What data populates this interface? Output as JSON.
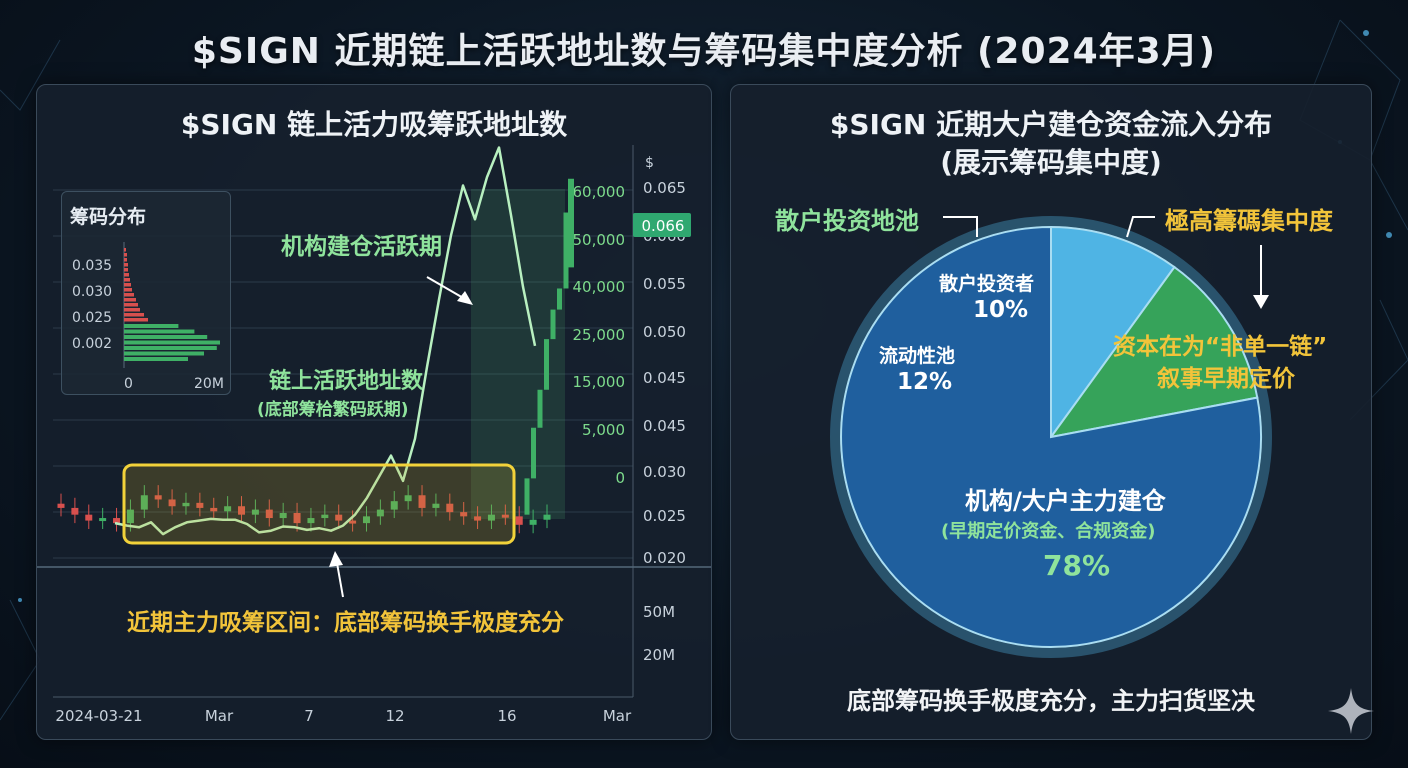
{
  "title": "$SIGN 近期链上活跃地址数与筹码集中度分析 (2024年3月)",
  "left_panel": {
    "title": "$SIGN 链上活力吸筹跃地址数",
    "inset_title": "筹码分布",
    "inset_y_ticks": [
      "0.035",
      "0.030",
      "0.025",
      "0.002"
    ],
    "inset_x_ticks": [
      "0",
      "20M"
    ],
    "price_axis_unit": "$",
    "price_ticks": [
      "0.065",
      "0.060",
      "0.055",
      "0.050",
      "0.045",
      "0.045",
      "0.030",
      "0.025",
      "0.020"
    ],
    "current_price": "0.066",
    "address_ticks": [
      "60,000",
      "50,000",
      "40,000",
      "25,000",
      "15,000",
      "5,000",
      "0"
    ],
    "volume_ticks": [
      "50M",
      "20M"
    ],
    "x_ticks": [
      "2024-03-21",
      "Mar",
      "7",
      "12",
      "16",
      "Mar"
    ],
    "annotation_institution": "机构建仓活跃期",
    "annotation_address_line1": "链上活跃地址数",
    "annotation_address_line2": "(底部筹㭘繁码跃期)",
    "annotation_zone": "近期主力吸筹区间：底部筹码换手极度充分"
  },
  "right_panel": {
    "title_line1": "$SIGN 近期大户建仓资金流入分布",
    "title_line2": "(展示筹码集中度)",
    "callout_left": "散户投资地池",
    "callout_right": "極高籌碼集中度",
    "callout_right_note_line1": "资本在为“非单一链”",
    "callout_right_note_line2": "叙事早期定价",
    "slice_retail_label": "散户投资者",
    "slice_retail_pct": "10%",
    "slice_liquidity_label": "流动性池",
    "slice_liquidity_pct": "12%",
    "slice_inst_label": "机构/大户主力建仓",
    "slice_inst_sub": "(早期定价资金、合规资金)",
    "slice_inst_pct": "78%",
    "footer": "底部筹码换手极度充分，主力扫货坚决"
  },
  "colors": {
    "green": "#7ddb8c",
    "yellow": "#f2c43a",
    "red": "#d8504e",
    "blue_dark": "#1f5f9e",
    "blue_light": "#4fb4e4",
    "green_slice": "#37a85c"
  },
  "chart_data": [
    {
      "type": "line",
      "title": "$SIGN 链上活力吸筹跃地址数",
      "ylabel": "$",
      "series": [
        {
          "name": "链上活跃地址数",
          "x": [
            0,
            1,
            2,
            3,
            4,
            5,
            6,
            7,
            8,
            9,
            10,
            11,
            12,
            13,
            14,
            15,
            16,
            17,
            18,
            19,
            20,
            21,
            22,
            23,
            24,
            25,
            26,
            27,
            28,
            29,
            30,
            31,
            32,
            33,
            34,
            35
          ],
          "values": [
            0.0252,
            0.0249,
            0.0247,
            0.0253,
            0.0239,
            0.0247,
            0.0253,
            0.0255,
            0.0257,
            0.0256,
            0.0256,
            0.0251,
            0.0241,
            0.0243,
            0.0248,
            0.0247,
            0.0244,
            0.0246,
            0.0243,
            0.0249,
            0.0262,
            0.0282,
            0.0307,
            0.0332,
            0.0302,
            0.0352,
            0.0437,
            0.0517,
            0.0593,
            0.0652,
            0.0612,
            0.0662,
            0.0697,
            0.0617,
            0.0532,
            0.0462
          ]
        }
      ],
      "candles_note": "candlestick price series approx. 0.025–0.030 bottom zone, rallying to ~0.066",
      "price_axis_ticks": [
        "0.065",
        "0.060",
        "0.055",
        "0.050",
        "0.045",
        "0.045",
        "0.030",
        "0.025",
        "0.020"
      ],
      "address_axis_ticks": [
        "60,000",
        "50,000",
        "40,000",
        "25,000",
        "15,000",
        "5,000",
        "0"
      ],
      "x_ticks": [
        "2024-03-21",
        "Mar",
        "7",
        "12",
        "16",
        "Mar"
      ],
      "highlight_zone": "近期主力吸筹区间：底部筹码换手极度充分"
    },
    {
      "type": "bar",
      "title": "筹码分布",
      "orientation": "horizontal",
      "y_ticks": [
        "0.035",
        "0.030",
        "0.025",
        "0.002"
      ],
      "x_ticks": [
        "0",
        "20M"
      ],
      "series": [
        {
          "values_red": [
            2,
            3,
            3,
            4,
            4,
            5,
            6,
            7,
            8,
            10,
            12,
            14,
            16,
            20,
            24
          ]
        },
        {
          "values_green": [
            34,
            44,
            52,
            60,
            58,
            50,
            40
          ]
        }
      ]
    },
    {
      "type": "pie",
      "title": "$SIGN 近期大户建仓资金流入分布",
      "categories": [
        "散户投资者",
        "流动性池",
        "机构/大户主力建仓"
      ],
      "values": [
        10,
        12,
        78
      ]
    }
  ]
}
